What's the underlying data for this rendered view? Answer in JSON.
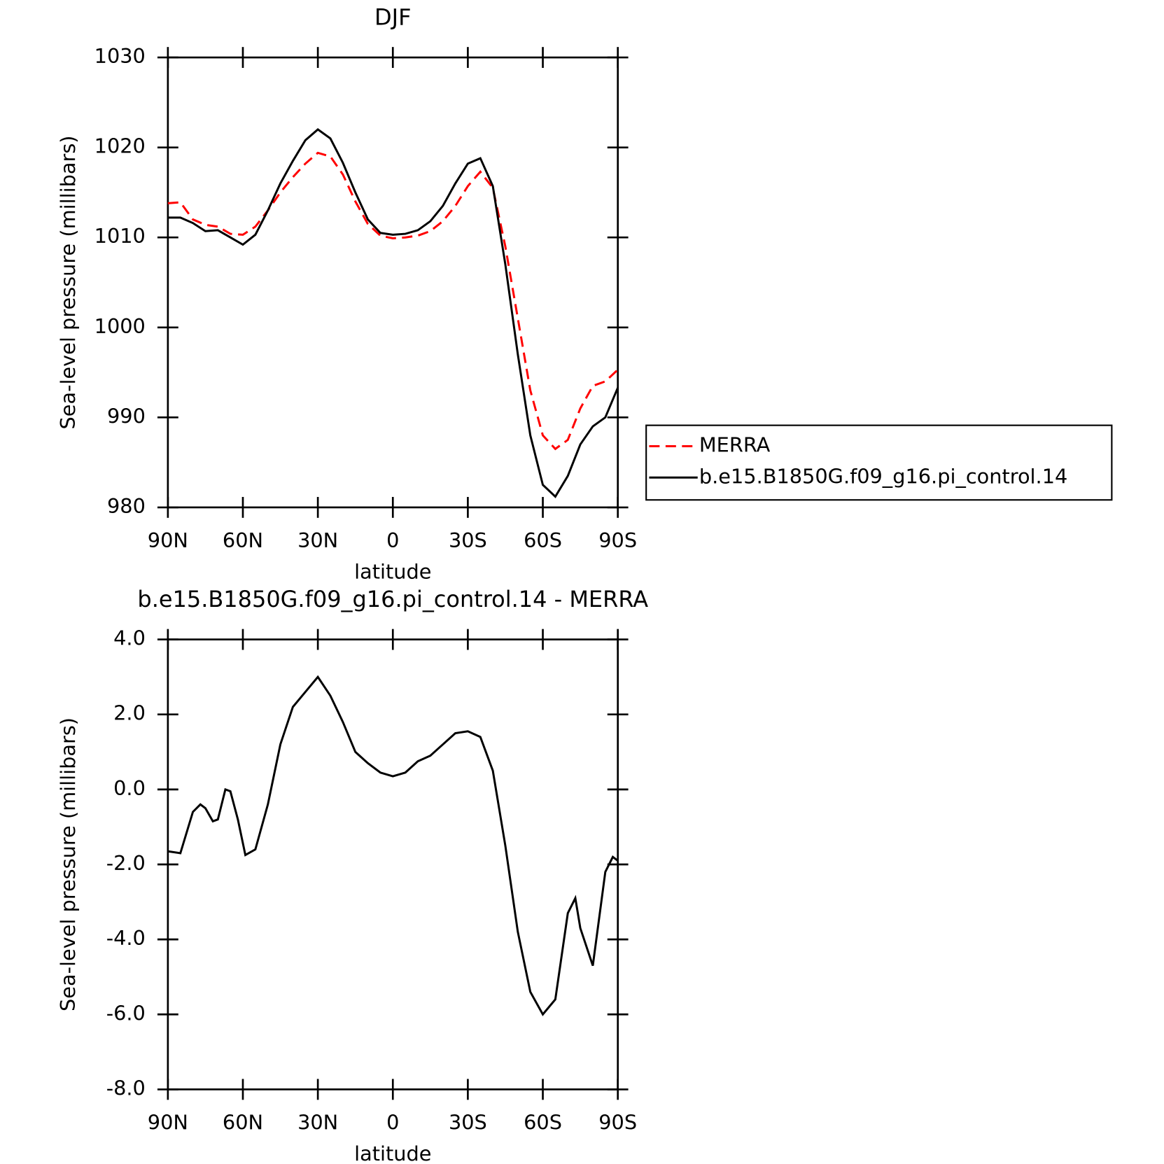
{
  "chart_data": [
    {
      "type": "line",
      "title": "DJF",
      "xlabel": "latitude",
      "ylabel": "Sea-level pressure (millibars)",
      "x": [
        90,
        85,
        80,
        75,
        70,
        65,
        60,
        55,
        50,
        45,
        40,
        35,
        30,
        25,
        20,
        15,
        10,
        5,
        0,
        -5,
        -10,
        -15,
        -20,
        -25,
        -30,
        -35,
        -40,
        -45,
        -50,
        -55,
        -60,
        -65,
        -70,
        -75,
        -80,
        -85,
        -90
      ],
      "series": [
        {
          "name": "MERRA",
          "color": "#ff0000",
          "dash": true,
          "values": [
            1013.8,
            1013.9,
            1012,
            1011.4,
            1011.2,
            1010.4,
            1010.3,
            1011.2,
            1013,
            1015,
            1016.7,
            1018.2,
            1019.4,
            1019,
            1017,
            1014,
            1011.5,
            1010.2,
            1009.9,
            1010,
            1010.2,
            1010.7,
            1011.8,
            1013.5,
            1015.7,
            1017.3,
            1015.5,
            1009,
            1001,
            993,
            988,
            986.5,
            987.5,
            991,
            993.5,
            994,
            995.3
          ]
        },
        {
          "name": "b.e15.B1850G.f09_g16.pi_control.14",
          "color": "#000000",
          "dash": false,
          "values": [
            1012.2,
            1012.2,
            1011.6,
            1010.7,
            1010.8,
            1010,
            1009.2,
            1010.3,
            1013,
            1016,
            1018.5,
            1020.8,
            1022,
            1021,
            1018.3,
            1015,
            1012,
            1010.5,
            1010.3,
            1010.4,
            1010.8,
            1011.8,
            1013.5,
            1016,
            1018.2,
            1018.8,
            1015.7,
            1007,
            997,
            988,
            982.5,
            981.2,
            983.5,
            987,
            989,
            990,
            993.3
          ]
        }
      ],
      "xlim": [
        90,
        -90
      ],
      "xticks": [
        {
          "value": 90,
          "label": "90N"
        },
        {
          "value": 60,
          "label": "60N"
        },
        {
          "value": 30,
          "label": "30N"
        },
        0,
        {
          "value": -30,
          "label": "30S"
        },
        {
          "value": -60,
          "label": "60S"
        },
        {
          "value": -90,
          "label": "90S"
        }
      ],
      "ylim": [
        980,
        1030
      ],
      "yticks": [
        980,
        990,
        1000,
        1010,
        1020,
        1030
      ],
      "legend": "right"
    },
    {
      "type": "line",
      "title": "b.e15.B1850G.f09_g16.pi_control.14 - MERRA",
      "xlabel": "latitude",
      "ylabel": "Sea-level pressure (millibars)",
      "x": [
        90,
        85,
        80,
        77,
        75,
        72,
        70,
        67,
        65,
        62,
        59,
        55,
        50,
        45,
        40,
        35,
        30,
        25,
        20,
        15,
        10,
        5,
        0,
        -5,
        -10,
        -15,
        -20,
        -25,
        -30,
        -35,
        -40,
        -45,
        -50,
        -55,
        -60,
        -65,
        -70,
        -73,
        -75,
        -80,
        -85,
        -88,
        -90
      ],
      "series": [
        {
          "color": "#000000",
          "dash": false,
          "values": [
            -1.65,
            -1.7,
            -0.6,
            -0.4,
            -0.5,
            -0.85,
            -0.8,
            0,
            -0.05,
            -0.8,
            -1.75,
            -1.6,
            -0.4,
            1.2,
            2.2,
            2.6,
            3.0,
            2.5,
            1.8,
            1.0,
            0.7,
            0.45,
            0.35,
            0.45,
            0.75,
            0.9,
            1.2,
            1.5,
            1.55,
            1.4,
            0.5,
            -1.5,
            -3.8,
            -5.4,
            -6.0,
            -5.6,
            -3.3,
            -2.9,
            -3.7,
            -4.7,
            -2.2,
            -1.8,
            -1.9
          ]
        }
      ],
      "xlim": [
        90,
        -90
      ],
      "xticks": [
        {
          "value": 90,
          "label": "90N"
        },
        {
          "value": 60,
          "label": "60N"
        },
        {
          "value": 30,
          "label": "30N"
        },
        0,
        {
          "value": -30,
          "label": "30S"
        },
        {
          "value": -60,
          "label": "60S"
        },
        {
          "value": -90,
          "label": "90S"
        }
      ],
      "ylim": [
        -8,
        4
      ],
      "yticks": [
        {
          "value": -8,
          "label": "-8.0"
        },
        {
          "value": -6,
          "label": "-6.0"
        },
        {
          "value": -4,
          "label": "-4.0"
        },
        {
          "value": -2,
          "label": "-2.0"
        },
        {
          "value": 0,
          "label": "0.0"
        },
        {
          "value": 2,
          "label": "2.0"
        },
        {
          "value": 4,
          "label": "4.0"
        }
      ]
    }
  ]
}
